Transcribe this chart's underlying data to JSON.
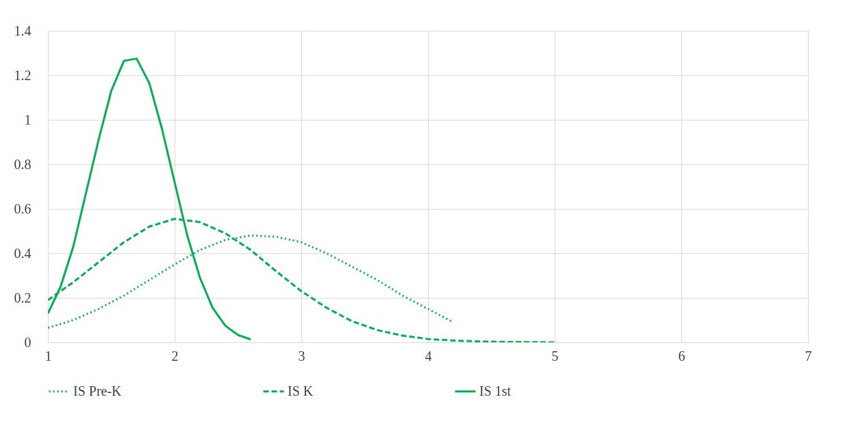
{
  "chart_data": {
    "type": "line",
    "xlim": [
      1,
      7
    ],
    "xticks": [
      1,
      2,
      3,
      4,
      5,
      6,
      7
    ],
    "ylim": [
      0,
      1.4
    ],
    "yticks": [
      0,
      0.2,
      0.4,
      0.6,
      0.8,
      1,
      1.2,
      1.4
    ],
    "grid": true,
    "legend": "bottom",
    "marker": "none",
    "series": [
      {
        "name": "IS Pre-K",
        "color": "#00b050",
        "line_style": "dotted",
        "x": [
          1.0,
          1.2,
          1.4,
          1.6,
          1.8,
          2.0,
          2.2,
          2.4,
          2.6,
          2.8,
          3.0,
          3.2,
          3.4,
          3.6,
          3.8,
          4.0,
          4.2
        ],
        "values": [
          0.065,
          0.1,
          0.15,
          0.21,
          0.28,
          0.35,
          0.415,
          0.46,
          0.48,
          0.475,
          0.45,
          0.4,
          0.34,
          0.28,
          0.21,
          0.15,
          0.09
        ]
      },
      {
        "name": "IS K",
        "color": "#00b050",
        "line_style": "dashed",
        "x": [
          1.0,
          1.2,
          1.4,
          1.6,
          1.8,
          2.0,
          2.2,
          2.4,
          2.6,
          2.8,
          3.0,
          3.2,
          3.4,
          3.6,
          3.8,
          4.0,
          4.2,
          4.4,
          4.6,
          4.8,
          5.0
        ],
        "values": [
          0.19,
          0.27,
          0.36,
          0.45,
          0.52,
          0.555,
          0.54,
          0.49,
          0.415,
          0.32,
          0.23,
          0.155,
          0.095,
          0.055,
          0.03,
          0.015,
          0.008,
          0.004,
          0.002,
          0.001,
          0.0
        ]
      },
      {
        "name": "IS 1st",
        "color": "#00b050",
        "line_style": "solid",
        "x": [
          1.0,
          1.1,
          1.2,
          1.3,
          1.4,
          1.5,
          1.6,
          1.7,
          1.8,
          1.9,
          2.0,
          2.1,
          2.2,
          2.3,
          2.4,
          2.5,
          2.6
        ],
        "values": [
          0.13,
          0.25,
          0.43,
          0.67,
          0.91,
          1.13,
          1.265,
          1.275,
          1.165,
          0.96,
          0.72,
          0.48,
          0.29,
          0.155,
          0.075,
          0.033,
          0.013
        ]
      }
    ]
  }
}
